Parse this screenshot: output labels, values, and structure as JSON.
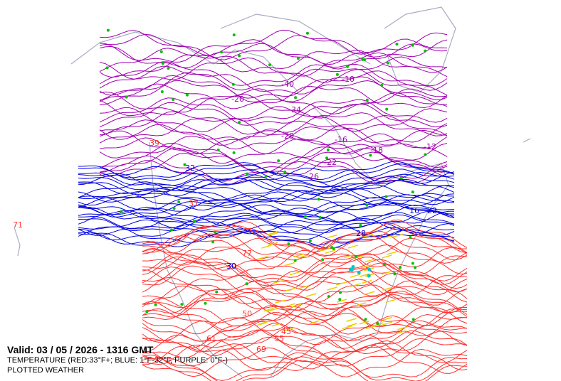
{
  "map": {
    "valid_line": "Valid: 03 / 05 / 2026  -  1316 GMT",
    "legend_line": "TEMPERATURE (RED:33°F+; BLUE: 1°F-32°F, PURPLE: 0°F-)",
    "layer_line": "PLOTTED WEATHER",
    "colors": {
      "warm_contours": "#ff3030",
      "cold_contours": "#0000dd",
      "subzero_contours": "#a000b0",
      "coastline": "#a8acc0",
      "precip": "#e8d000",
      "snow_symbols": "#00c000",
      "freezing_rain": "#00c8c8"
    },
    "contour_labels": {
      "subzero": [
        "-40",
        "-34",
        "-28",
        "-20",
        "-16",
        "-10",
        "-22",
        "-26",
        "-18",
        "-12"
      ],
      "cold": [
        "32",
        "28",
        "30",
        "22",
        "16"
      ],
      "warm": [
        "39",
        "71",
        "50",
        "69",
        "45",
        "55",
        "61",
        "77",
        "37"
      ]
    }
  }
}
